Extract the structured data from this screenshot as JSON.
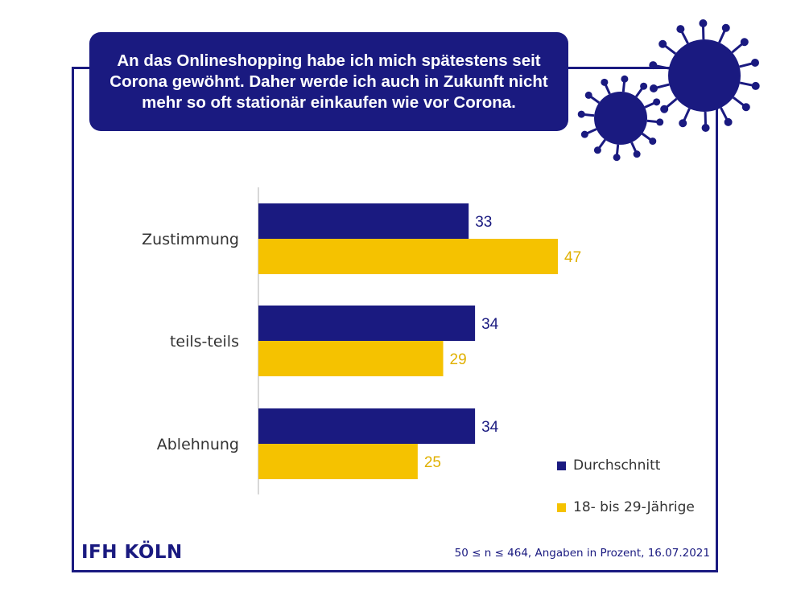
{
  "title": "An das Onlineshopping habe ich mich spätestens seit Corona gewöhnt. Daher werde ich auch in Zukunft nicht mehr so oft stationär einkaufen wie vor Corona.",
  "logo_text": "IFH KÖLN",
  "footnote": "50 ≤ n ≤ 464, Angaben in Prozent, 16.07.2021",
  "colors": {
    "navy": "#1a1a80",
    "gold": "#f5c200",
    "axis": "#b0b0b0"
  },
  "chart_data": {
    "type": "bar",
    "orientation": "horizontal",
    "categories": [
      "Zustimmung",
      "teils-teils",
      "Ablehnung"
    ],
    "series": [
      {
        "name": "Durchschnitt",
        "values": [
          33,
          34,
          34
        ],
        "color": "#1a1a80"
      },
      {
        "name": "18- bis 29-Jährige",
        "values": [
          47,
          29,
          25
        ],
        "color": "#f5c200"
      }
    ],
    "xlim": [
      0,
      47
    ],
    "legend_position": "bottom-right",
    "grid": false
  }
}
